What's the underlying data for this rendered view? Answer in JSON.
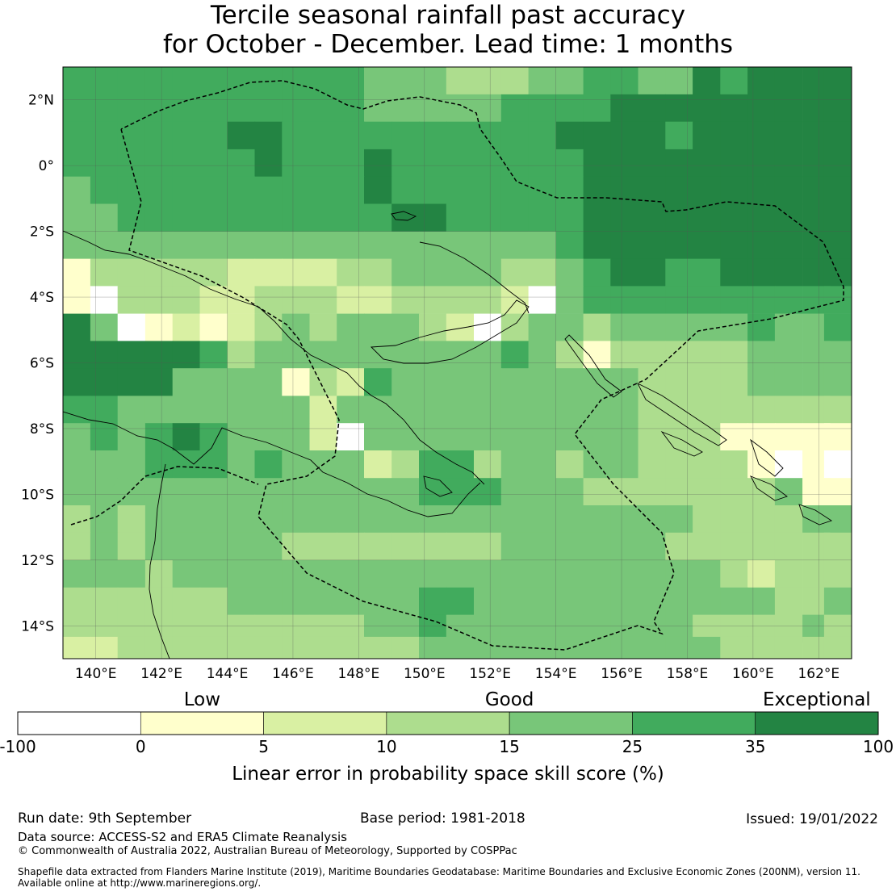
{
  "title": {
    "line1": "Tercile seasonal rainfall past accuracy",
    "line2": "for October - December. Lead time: 1 months"
  },
  "map": {
    "lon_range": [
      139.0,
      163.0
    ],
    "lat_range": [
      -15.0,
      3.0
    ],
    "cell_size_deg": 0.833,
    "grid": "on",
    "x_ticks": [
      {
        "value": 140,
        "label": "140°E"
      },
      {
        "value": 142,
        "label": "142°E"
      },
      {
        "value": 144,
        "label": "144°E"
      },
      {
        "value": 146,
        "label": "146°E"
      },
      {
        "value": 148,
        "label": "148°E"
      },
      {
        "value": 150,
        "label": "150°E"
      },
      {
        "value": 152,
        "label": "152°E"
      },
      {
        "value": 154,
        "label": "154°E"
      },
      {
        "value": 156,
        "label": "156°E"
      },
      {
        "value": 158,
        "label": "158°E"
      },
      {
        "value": 160,
        "label": "160°E"
      },
      {
        "value": 162,
        "label": "162°E"
      }
    ],
    "y_ticks": [
      {
        "value": 2,
        "label": "2°N"
      },
      {
        "value": 0,
        "label": "0°"
      },
      {
        "value": -2,
        "label": "2°S"
      },
      {
        "value": -4,
        "label": "4°S"
      },
      {
        "value": -6,
        "label": "6°S"
      },
      {
        "value": -8,
        "label": "8°S"
      },
      {
        "value": -10,
        "label": "10°S"
      },
      {
        "value": -12,
        "label": "12°S"
      },
      {
        "value": -14,
        "label": "14°S"
      }
    ]
  },
  "colorbar": {
    "categories": [
      {
        "label": "Low",
        "value": 2.5
      },
      {
        "label": "Good",
        "value": 15
      },
      {
        "label": "Exceptional",
        "value": 67.5
      }
    ],
    "bounds": [
      -100,
      0,
      5,
      10,
      15,
      25,
      35,
      100
    ],
    "tick_labels": [
      "-100",
      "0",
      "5",
      "10",
      "15",
      "25",
      "35",
      "100"
    ],
    "colors": [
      "#ffffff",
      "#ffffcc",
      "#d9f0a3",
      "#addd8e",
      "#78c679",
      "#41ab5d",
      "#238443"
    ],
    "label": "Linear error in probability space skill score (%)"
  },
  "chart_data": {
    "type": "heatmap",
    "title": "Tercile seasonal rainfall past accuracy for October - December. Lead time: 1 months",
    "xlabel": "",
    "ylabel": "",
    "xlim": [
      139.0,
      163.0
    ],
    "ylim": [
      -15.0,
      3.0
    ],
    "x": [
      139.42,
      140.25,
      141.08,
      141.92,
      142.75,
      143.58,
      144.42,
      145.25,
      146.08,
      146.92,
      147.75,
      148.58,
      149.42,
      150.25,
      151.08,
      151.92,
      152.75,
      153.58,
      154.42,
      155.25,
      156.08,
      156.92,
      157.75,
      158.58,
      159.42,
      160.25,
      161.08,
      161.92,
      162.58
    ],
    "y": [
      2.58,
      1.75,
      0.92,
      0.08,
      -0.75,
      -1.58,
      -2.42,
      -3.25,
      -4.08,
      -4.92,
      -5.75,
      -6.58,
      -7.42,
      -8.25,
      -9.08,
      -9.92,
      -10.75,
      -11.58,
      -12.42,
      -13.25,
      -14.08,
      -14.75
    ],
    "value_unit": "Linear error in probability space skill score (%)",
    "category_values": [
      -50,
      2.5,
      7.5,
      12.5,
      20,
      30,
      67.5
    ],
    "values": [
      [
        5,
        5,
        5,
        5,
        5,
        5,
        5,
        5,
        5,
        5,
        5,
        4,
        4,
        4,
        3,
        3,
        3,
        4,
        4,
        5,
        5,
        4,
        4,
        6,
        5,
        6,
        6,
        6,
        6
      ],
      [
        5,
        5,
        5,
        5,
        5,
        5,
        5,
        5,
        5,
        5,
        5,
        4,
        4,
        4,
        4,
        4,
        5,
        5,
        5,
        5,
        6,
        6,
        6,
        6,
        6,
        6,
        6,
        6,
        6
      ],
      [
        5,
        5,
        5,
        5,
        5,
        5,
        6,
        6,
        5,
        5,
        5,
        5,
        5,
        5,
        5,
        5,
        5,
        5,
        6,
        6,
        6,
        6,
        5,
        6,
        6,
        6,
        6,
        6,
        6
      ],
      [
        5,
        5,
        5,
        5,
        5,
        5,
        5,
        6,
        5,
        5,
        5,
        6,
        5,
        5,
        5,
        5,
        5,
        5,
        5,
        6,
        6,
        6,
        6,
        6,
        6,
        6,
        6,
        6,
        6
      ],
      [
        4,
        5,
        5,
        5,
        5,
        5,
        5,
        5,
        5,
        5,
        5,
        6,
        5,
        5,
        5,
        5,
        5,
        5,
        5,
        6,
        6,
        6,
        6,
        6,
        6,
        6,
        6,
        6,
        6
      ],
      [
        4,
        4,
        5,
        5,
        5,
        5,
        5,
        5,
        5,
        5,
        5,
        5,
        6,
        6,
        5,
        5,
        5,
        5,
        5,
        6,
        6,
        6,
        6,
        6,
        6,
        6,
        6,
        6,
        6
      ],
      [
        4,
        4,
        4,
        4,
        4,
        4,
        4,
        4,
        4,
        4,
        4,
        4,
        4,
        4,
        4,
        4,
        4,
        4,
        5,
        6,
        6,
        6,
        6,
        6,
        6,
        6,
        6,
        6,
        6
      ],
      [
        1,
        3,
        3,
        3,
        3,
        3,
        2,
        2,
        2,
        2,
        3,
        3,
        4,
        4,
        4,
        4,
        3,
        3,
        4,
        5,
        6,
        6,
        5,
        5,
        6,
        6,
        6,
        6,
        6
      ],
      [
        1,
        0,
        3,
        3,
        3,
        2,
        2,
        3,
        3,
        3,
        2,
        2,
        3,
        3,
        3,
        3,
        2,
        0,
        4,
        5,
        5,
        5,
        5,
        5,
        5,
        5,
        5,
        5,
        5
      ],
      [
        6,
        4,
        0,
        1,
        2,
        1,
        2,
        3,
        4,
        3,
        4,
        4,
        4,
        3,
        2,
        0,
        3,
        4,
        4,
        3,
        4,
        4,
        4,
        4,
        4,
        5,
        4,
        4,
        5
      ],
      [
        6,
        6,
        6,
        6,
        6,
        5,
        3,
        4,
        4,
        4,
        4,
        4,
        4,
        4,
        4,
        4,
        5,
        4,
        3,
        1,
        3,
        3,
        3,
        3,
        3,
        4,
        4,
        4,
        4
      ],
      [
        6,
        6,
        6,
        6,
        4,
        4,
        4,
        4,
        1,
        3,
        2,
        5,
        4,
        4,
        4,
        4,
        4,
        4,
        4,
        4,
        4,
        3,
        3,
        3,
        3,
        4,
        4,
        4,
        4
      ],
      [
        5,
        5,
        4,
        4,
        4,
        4,
        4,
        4,
        4,
        2,
        4,
        4,
        4,
        4,
        4,
        4,
        4,
        4,
        4,
        4,
        4,
        3,
        3,
        3,
        3,
        3,
        3,
        3,
        3
      ],
      [
        4,
        5,
        4,
        5,
        6,
        5,
        4,
        4,
        4,
        2,
        0,
        4,
        4,
        4,
        4,
        4,
        4,
        4,
        4,
        4,
        4,
        3,
        3,
        3,
        1,
        1,
        1,
        1,
        1
      ],
      [
        4,
        4,
        4,
        5,
        5,
        5,
        4,
        5,
        4,
        4,
        4,
        2,
        3,
        5,
        5,
        3,
        4,
        4,
        3,
        4,
        4,
        3,
        3,
        3,
        3,
        1,
        0,
        1,
        0
      ],
      [
        4,
        4,
        4,
        4,
        4,
        4,
        4,
        4,
        4,
        4,
        4,
        4,
        4,
        5,
        5,
        5,
        4,
        4,
        4,
        3,
        3,
        3,
        3,
        3,
        3,
        3,
        4,
        1,
        1
      ],
      [
        3,
        4,
        3,
        4,
        4,
        4,
        4,
        4,
        4,
        4,
        4,
        4,
        4,
        4,
        4,
        4,
        4,
        4,
        4,
        4,
        4,
        4,
        4,
        3,
        3,
        3,
        3,
        4,
        4
      ],
      [
        3,
        4,
        3,
        4,
        4,
        4,
        4,
        4,
        3,
        3,
        3,
        3,
        3,
        3,
        3,
        3,
        4,
        4,
        4,
        4,
        4,
        4,
        3,
        3,
        3,
        3,
        3,
        3,
        3
      ],
      [
        4,
        4,
        4,
        3,
        4,
        4,
        4,
        4,
        4,
        4,
        4,
        4,
        4,
        4,
        4,
        4,
        4,
        4,
        4,
        4,
        4,
        4,
        4,
        4,
        3,
        2,
        3,
        3,
        3
      ],
      [
        3,
        3,
        3,
        3,
        3,
        3,
        4,
        4,
        4,
        4,
        4,
        4,
        4,
        5,
        5,
        4,
        4,
        4,
        4,
        4,
        4,
        4,
        4,
        4,
        4,
        4,
        3,
        3,
        4
      ],
      [
        3,
        3,
        3,
        3,
        3,
        3,
        3,
        3,
        3,
        3,
        3,
        4,
        4,
        5,
        4,
        4,
        4,
        4,
        4,
        4,
        4,
        4,
        4,
        3,
        3,
        3,
        3,
        4,
        3
      ],
      [
        2,
        2,
        3,
        3,
        3,
        3,
        3,
        3,
        3,
        3,
        3,
        3,
        3,
        4,
        4,
        4,
        4,
        4,
        4,
        4,
        4,
        4,
        4,
        4,
        3,
        3,
        3,
        3,
        3
      ]
    ]
  },
  "footer": {
    "run_date": "Run date: 9th September",
    "base_period": "Base period: 1981-2018",
    "issued": "Issued: 19/01/2022",
    "data_source": "Data source: ACCESS-S2 and ERA5 Climate Reanalysis",
    "copyright": "© Commonwealth of Australia 2022, Australian Bureau of Meteorology, Supported by COSPPac",
    "shapefile_line1": "Shapefile data extracted from Flanders Marine Institute (2019), Maritime Boundaries Geodatabase: Maritime Boundaries and Exclusive Economic Zones (200NM), version 11.",
    "shapefile_line2": "Available online at http://www.marineregions.org/."
  }
}
